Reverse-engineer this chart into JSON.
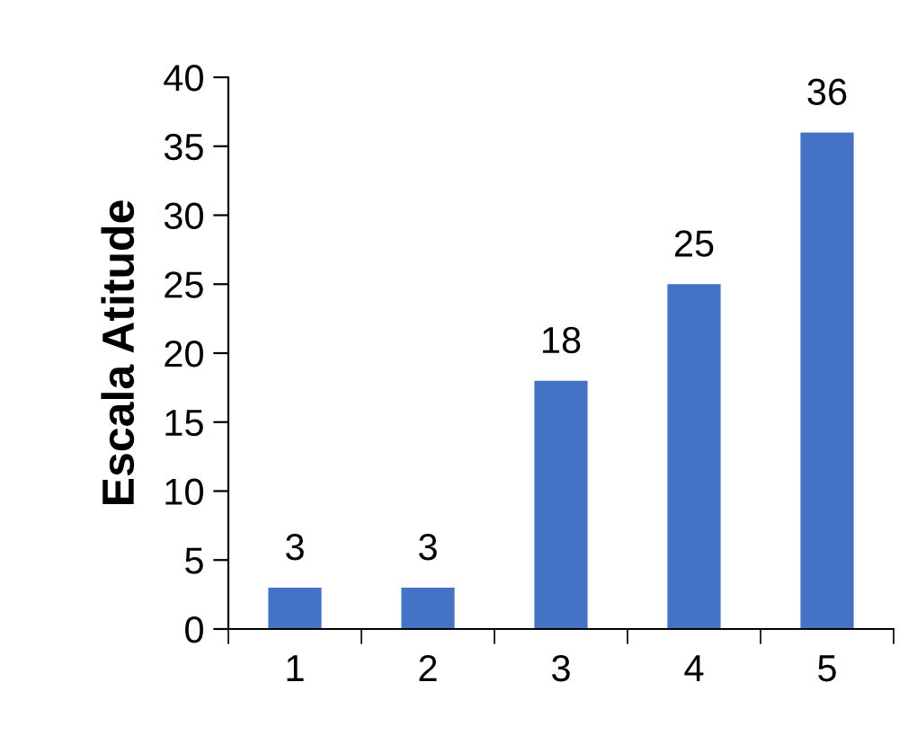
{
  "chart_data": {
    "type": "bar",
    "ylabel": "Escala Atitude",
    "categories": [
      "1",
      "2",
      "3",
      "4",
      "5"
    ],
    "values": [
      3,
      3,
      18,
      25,
      36
    ],
    "color": "#4472c4",
    "ylim": [
      0,
      40
    ],
    "yticks": [
      0,
      5,
      10,
      15,
      20,
      25,
      30,
      35,
      40
    ],
    "data_labels": true,
    "grid": false,
    "legend": false
  }
}
